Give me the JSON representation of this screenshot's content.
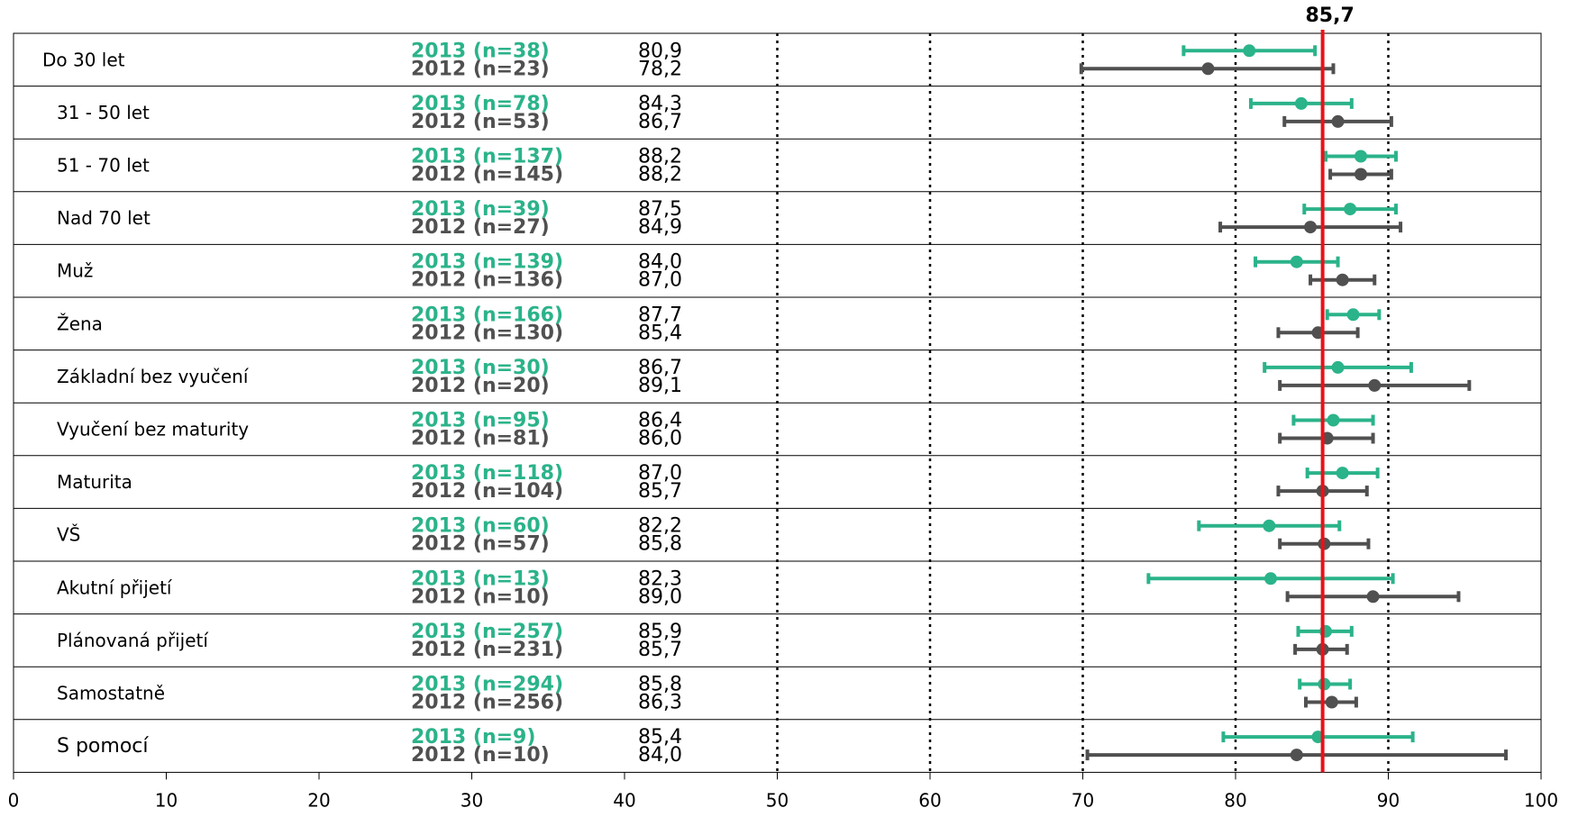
{
  "chart_data": {
    "type": "forest",
    "reference_value": 85.7,
    "reference_label": "85,7",
    "xlim": [
      0,
      100
    ],
    "x_ticks": [
      0,
      10,
      20,
      30,
      40,
      50,
      60,
      70,
      80,
      90,
      100
    ],
    "dotted_gridlines_at": [
      50,
      60,
      70,
      80,
      90
    ],
    "grid": "dotted vertical",
    "colors": {
      "2013": "#2bb38a",
      "2012": "#505050",
      "reference": "#e8121b",
      "frame": "#000000"
    },
    "series": [
      {
        "name": "2013",
        "color": "#2bb38a"
      },
      {
        "name": "2012",
        "color": "#505050"
      }
    ],
    "rows": [
      {
        "label": "Do 30 let",
        "y2013": {
          "label": "2013 (n=38)",
          "value": 80.9,
          "value_text": "80,9",
          "low": 76.6,
          "high": 85.2
        },
        "y2012": {
          "label": "2012 (n=23)",
          "value": 78.2,
          "value_text": "78,2",
          "low": 69.9,
          "high": 86.4
        }
      },
      {
        "label": "31 - 50 let",
        "y2013": {
          "label": "2013 (n=78)",
          "value": 84.3,
          "value_text": "84,3",
          "low": 81.0,
          "high": 87.6
        },
        "y2012": {
          "label": "2012 (n=53)",
          "value": 86.7,
          "value_text": "86,7",
          "low": 83.2,
          "high": 90.2
        }
      },
      {
        "label": "51 - 70 let",
        "y2013": {
          "label": "2013 (n=137)",
          "value": 88.2,
          "value_text": "88,2",
          "low": 85.9,
          "high": 90.5
        },
        "y2012": {
          "label": "2012 (n=145)",
          "value": 88.2,
          "value_text": "88,2",
          "low": 86.2,
          "high": 90.2
        }
      },
      {
        "label": "Nad 70 let",
        "y2013": {
          "label": "2013 (n=39)",
          "value": 87.5,
          "value_text": "87,5",
          "low": 84.5,
          "high": 90.5
        },
        "y2012": {
          "label": "2012 (n=27)",
          "value": 84.9,
          "value_text": "84,9",
          "low": 79.0,
          "high": 90.8
        }
      },
      {
        "label": "Muž",
        "y2013": {
          "label": "2013 (n=139)",
          "value": 84.0,
          "value_text": "84,0",
          "low": 81.3,
          "high": 86.7
        },
        "y2012": {
          "label": "2012 (n=136)",
          "value": 87.0,
          "value_text": "87,0",
          "low": 84.9,
          "high": 89.1
        }
      },
      {
        "label": "Žena",
        "y2013": {
          "label": "2013 (n=166)",
          "value": 87.7,
          "value_text": "87,7",
          "low": 86.0,
          "high": 89.4
        },
        "y2012": {
          "label": "2012 (n=130)",
          "value": 85.4,
          "value_text": "85,4",
          "low": 82.8,
          "high": 88.0
        }
      },
      {
        "label": "Základní bez vyučení",
        "y2013": {
          "label": "2013 (n=30)",
          "value": 86.7,
          "value_text": "86,7",
          "low": 81.9,
          "high": 91.5
        },
        "y2012": {
          "label": "2012 (n=20)",
          "value": 89.1,
          "value_text": "89,1",
          "low": 82.9,
          "high": 95.3
        }
      },
      {
        "label": "Vyučení bez maturity",
        "y2013": {
          "label": "2013 (n=95)",
          "value": 86.4,
          "value_text": "86,4",
          "low": 83.8,
          "high": 89.0
        },
        "y2012": {
          "label": "2012 (n=81)",
          "value": 86.0,
          "value_text": "86,0",
          "low": 82.9,
          "high": 89.0
        }
      },
      {
        "label": "Maturita",
        "y2013": {
          "label": "2013 (n=118)",
          "value": 87.0,
          "value_text": "87,0",
          "low": 84.7,
          "high": 89.3
        },
        "y2012": {
          "label": "2012 (n=104)",
          "value": 85.7,
          "value_text": "85,7",
          "low": 82.8,
          "high": 88.6
        }
      },
      {
        "label": "VŠ",
        "y2013": {
          "label": "2013 (n=60)",
          "value": 82.2,
          "value_text": "82,2",
          "low": 77.6,
          "high": 86.8
        },
        "y2012": {
          "label": "2012 (n=57)",
          "value": 85.8,
          "value_text": "85,8",
          "low": 82.9,
          "high": 88.7
        }
      },
      {
        "label": "Akutní přijetí",
        "y2013": {
          "label": "2013 (n=13)",
          "value": 82.3,
          "value_text": "82,3",
          "low": 74.3,
          "high": 90.3
        },
        "y2012": {
          "label": "2012 (n=10)",
          "value": 89.0,
          "value_text": "89,0",
          "low": 83.4,
          "high": 94.6
        }
      },
      {
        "label": "Plánovaná přijetí",
        "y2013": {
          "label": "2013 (n=257)",
          "value": 85.9,
          "value_text": "85,9",
          "low": 84.1,
          "high": 87.6
        },
        "y2012": {
          "label": "2012 (n=231)",
          "value": 85.7,
          "value_text": "85,7",
          "low": 83.9,
          "high": 87.3
        }
      },
      {
        "label": "Samostatně",
        "y2013": {
          "label": "2013 (n=294)",
          "value": 85.8,
          "value_text": "85,8",
          "low": 84.2,
          "high": 87.5
        },
        "y2012": {
          "label": "2012 (n=256)",
          "value": 86.3,
          "value_text": "86,3",
          "low": 84.6,
          "high": 87.9
        }
      },
      {
        "label": "S pomocí",
        "y2013": {
          "label": "2013 (n=9)",
          "value": 85.4,
          "value_text": "85,4",
          "low": 79.2,
          "high": 91.6
        },
        "y2012": {
          "label": "2012 (n=10)",
          "value": 84.0,
          "value_text": "84,0",
          "low": 70.3,
          "high": 97.7
        }
      }
    ]
  }
}
